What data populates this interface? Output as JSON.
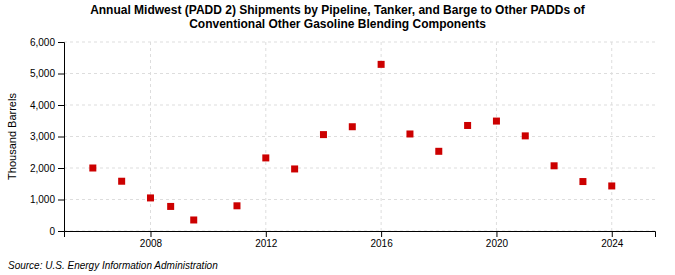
{
  "chart_data": {
    "type": "scatter",
    "title": "Annual Midwest (PADD 2) Shipments by Pipeline, Tanker, and Barge to Other PADDs of\nConventional Other Gasoline Blending Components",
    "ylabel": "Thousand Barrels",
    "source": "Source: U.S. Energy Information Administration",
    "x": [
      2006,
      2007,
      2008,
      2008.7,
      2009.5,
      2011,
      2012,
      2013,
      2014,
      2015,
      2016,
      2017,
      2018,
      2019,
      2020,
      2021,
      2022,
      2023,
      2024
    ],
    "values": [
      2000,
      1580,
      1050,
      780,
      350,
      800,
      2320,
      1970,
      3060,
      3310,
      5290,
      3080,
      2530,
      3350,
      3490,
      3020,
      2070,
      1570,
      1430
    ],
    "xlim": [
      2005,
      2025.5
    ],
    "ylim": [
      0,
      6000
    ],
    "xticks": [
      2008,
      2012,
      2016,
      2020,
      2024
    ],
    "yticks": [
      0,
      {
        "value": 1000,
        "label": "1,000"
      },
      {
        "value": 2000,
        "label": "2,000"
      },
      {
        "value": 3000,
        "label": "3,000"
      },
      {
        "value": 4000,
        "label": "4,000"
      },
      {
        "value": 5000,
        "label": "5,000"
      },
      {
        "value": 6000,
        "label": "6,000"
      }
    ],
    "grid": true,
    "color": "#cc0000",
    "marker": "square"
  }
}
